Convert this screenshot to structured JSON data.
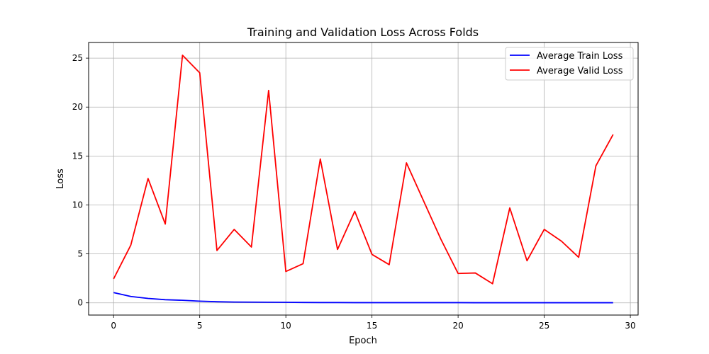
{
  "chart_data": {
    "type": "line",
    "title": "Training and Validation Loss Across Folds",
    "xlabel": "Epoch",
    "ylabel": "Loss",
    "xlim": [
      -1.45,
      30.45
    ],
    "ylim": [
      -1.25,
      26.6
    ],
    "xticks": [
      0,
      5,
      10,
      15,
      20,
      25,
      30
    ],
    "yticks": [
      0,
      5,
      10,
      15,
      20,
      25
    ],
    "grid": true,
    "legend_position": "top-right",
    "x": [
      0,
      1,
      2,
      3,
      4,
      5,
      6,
      7,
      8,
      9,
      10,
      11,
      12,
      13,
      14,
      15,
      16,
      17,
      18,
      19,
      20,
      21,
      22,
      23,
      24,
      25,
      26,
      27,
      28,
      29
    ],
    "series": [
      {
        "name": "Average Train Loss",
        "color": "#0000ff",
        "values": [
          1.05,
          0.65,
          0.45,
          0.32,
          0.26,
          0.17,
          0.11,
          0.08,
          0.07,
          0.06,
          0.05,
          0.04,
          0.03,
          0.03,
          0.02,
          0.02,
          0.02,
          0.02,
          0.02,
          0.02,
          0.02,
          0.01,
          0.01,
          0.01,
          0.01,
          0.01,
          0.01,
          0.01,
          0.01,
          0.01
        ]
      },
      {
        "name": "Average Valid Loss",
        "color": "#ff0000",
        "values": [
          2.45,
          5.9,
          12.7,
          8.05,
          25.3,
          23.5,
          5.35,
          7.5,
          5.7,
          21.7,
          3.2,
          4.0,
          14.7,
          5.45,
          9.35,
          4.95,
          3.9,
          14.3,
          10.4,
          6.5,
          3.0,
          3.05,
          1.95,
          9.7,
          4.3,
          7.5,
          6.3,
          4.65,
          14.0,
          17.2
        ]
      }
    ]
  }
}
